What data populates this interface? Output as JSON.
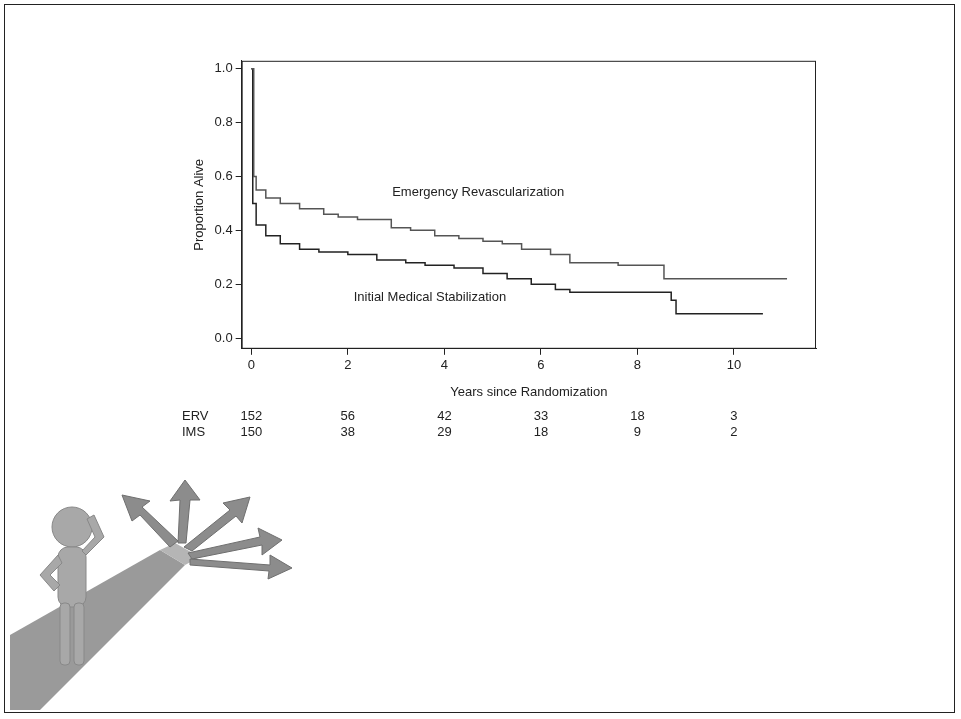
{
  "chart_data": {
    "type": "line",
    "x_label": "Years since Randomization",
    "y_label": "Proportion Alive",
    "xlim": [
      -0.2,
      11.7
    ],
    "xticks": [
      0,
      2,
      4,
      6,
      8,
      10
    ],
    "ylim": [
      -0.04,
      1.03
    ],
    "yticks": [
      {
        "value": 0,
        "label": "0.0"
      },
      {
        "value": 0.2,
        "label": "0.2"
      },
      {
        "value": 0.4,
        "label": "0.4"
      },
      {
        "value": 0.6,
        "label": "0.6"
      },
      {
        "value": 0.8,
        "label": "0.8"
      },
      {
        "value": 1,
        "label": "1.0"
      }
    ],
    "grid": false,
    "line_style": "step",
    "series": [
      {
        "name": "Emergency Revascularization",
        "color": "#555555",
        "x": [
          0,
          0.05,
          0.1,
          0.3,
          0.6,
          1.0,
          1.5,
          1.8,
          2.2,
          2.9,
          3.3,
          3.8,
          4.3,
          4.8,
          5.2,
          5.6,
          6.2,
          6.6,
          7.6,
          8.55,
          11.1
        ],
        "values": [
          1.0,
          0.6,
          0.55,
          0.52,
          0.5,
          0.48,
          0.46,
          0.45,
          0.44,
          0.41,
          0.4,
          0.38,
          0.37,
          0.36,
          0.35,
          0.33,
          0.31,
          0.28,
          0.27,
          0.22,
          0.22
        ]
      },
      {
        "name": "Initial Medical Stabilization",
        "color": "#222222",
        "x": [
          0,
          0.03,
          0.1,
          0.3,
          0.6,
          1.0,
          1.4,
          2.0,
          2.6,
          3.2,
          3.6,
          4.2,
          4.8,
          5.3,
          5.8,
          6.3,
          6.6,
          8.7,
          8.8,
          10.6
        ],
        "values": [
          1.0,
          0.5,
          0.42,
          0.38,
          0.35,
          0.33,
          0.32,
          0.31,
          0.29,
          0.28,
          0.27,
          0.26,
          0.24,
          0.22,
          0.2,
          0.18,
          0.17,
          0.14,
          0.09,
          0.09
        ]
      }
    ],
    "annotations": [
      {
        "text": "Emergency Revascularization",
        "x": 4.7,
        "y": 0.54
      },
      {
        "text": "Initial Medical Stabilization",
        "x": 3.7,
        "y": 0.15
      }
    ],
    "at_risk": {
      "x": [
        0,
        2,
        4,
        6,
        8,
        10
      ],
      "series": [
        {
          "name": "ERV",
          "values": [
            152,
            56,
            42,
            33,
            18,
            3
          ]
        },
        {
          "name": "IMS",
          "values": [
            150,
            38,
            29,
            18,
            9,
            2
          ]
        }
      ]
    }
  }
}
